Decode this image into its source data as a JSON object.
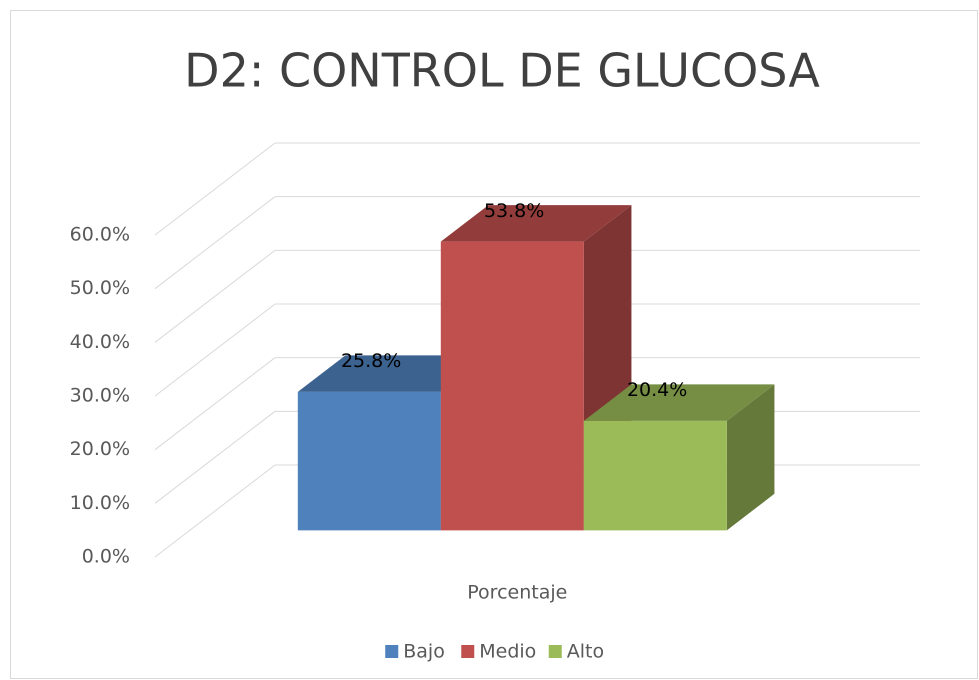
{
  "chart_data": {
    "type": "bar3d",
    "title": "D2: CONTROL DE GLUCOSA",
    "categories": [
      "Porcentaje"
    ],
    "series": [
      {
        "name": "Bajo",
        "color": "#4f81bd",
        "values": [
          25.8
        ],
        "value_labels": [
          "25.8%"
        ]
      },
      {
        "name": "Medio",
        "color": "#c0504d",
        "values": [
          53.8
        ],
        "value_labels": [
          "53.8%"
        ]
      },
      {
        "name": "Alto",
        "color": "#9bbb59",
        "values": [
          20.4
        ],
        "value_labels": [
          "20.4%"
        ]
      }
    ],
    "ylim": [
      0,
      60
    ],
    "yticks": [
      {
        "value": 0,
        "label": "0.0%"
      },
      {
        "value": 10,
        "label": "10.0%"
      },
      {
        "value": 20,
        "label": "20.0%"
      },
      {
        "value": 30,
        "label": "30.0%"
      },
      {
        "value": 40,
        "label": "40.0%"
      },
      {
        "value": 50,
        "label": "50.0%"
      },
      {
        "value": 60,
        "label": "60.0%"
      }
    ],
    "grid": true,
    "legend": "bottom"
  }
}
